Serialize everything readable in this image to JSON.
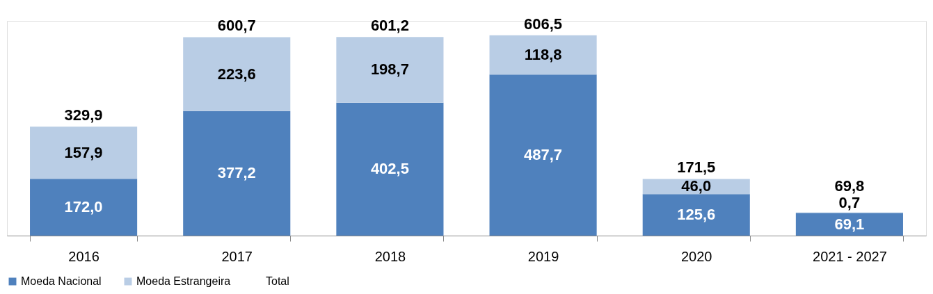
{
  "chart_data": {
    "type": "bar",
    "stacked": true,
    "legend": "bottom",
    "categories": [
      "2016",
      "2017",
      "2018",
      "2019",
      "2020",
      "2021 - 2027"
    ],
    "series": [
      {
        "name": "Moeda Nacional",
        "color": "#4f81bd",
        "values": [
          172.0,
          377.2,
          402.5,
          487.7,
          125.6,
          69.1
        ],
        "value_labels": [
          "172,0",
          "377,2",
          "402,5",
          "487,7",
          "125,6",
          "69,1"
        ]
      },
      {
        "name": "Moeda Estrangeira",
        "color": "#b9cde5",
        "values": [
          157.9,
          223.6,
          198.7,
          118.8,
          46.0,
          0.7
        ],
        "value_labels": [
          "157,9",
          "223,6",
          "198,7",
          "118,8",
          "46,0",
          "0,7"
        ]
      }
    ],
    "totals": [
      "329,9",
      "600,7",
      "601,2",
      "606,5",
      "171,5",
      "69,8"
    ],
    "annotations": [
      "Total"
    ]
  }
}
